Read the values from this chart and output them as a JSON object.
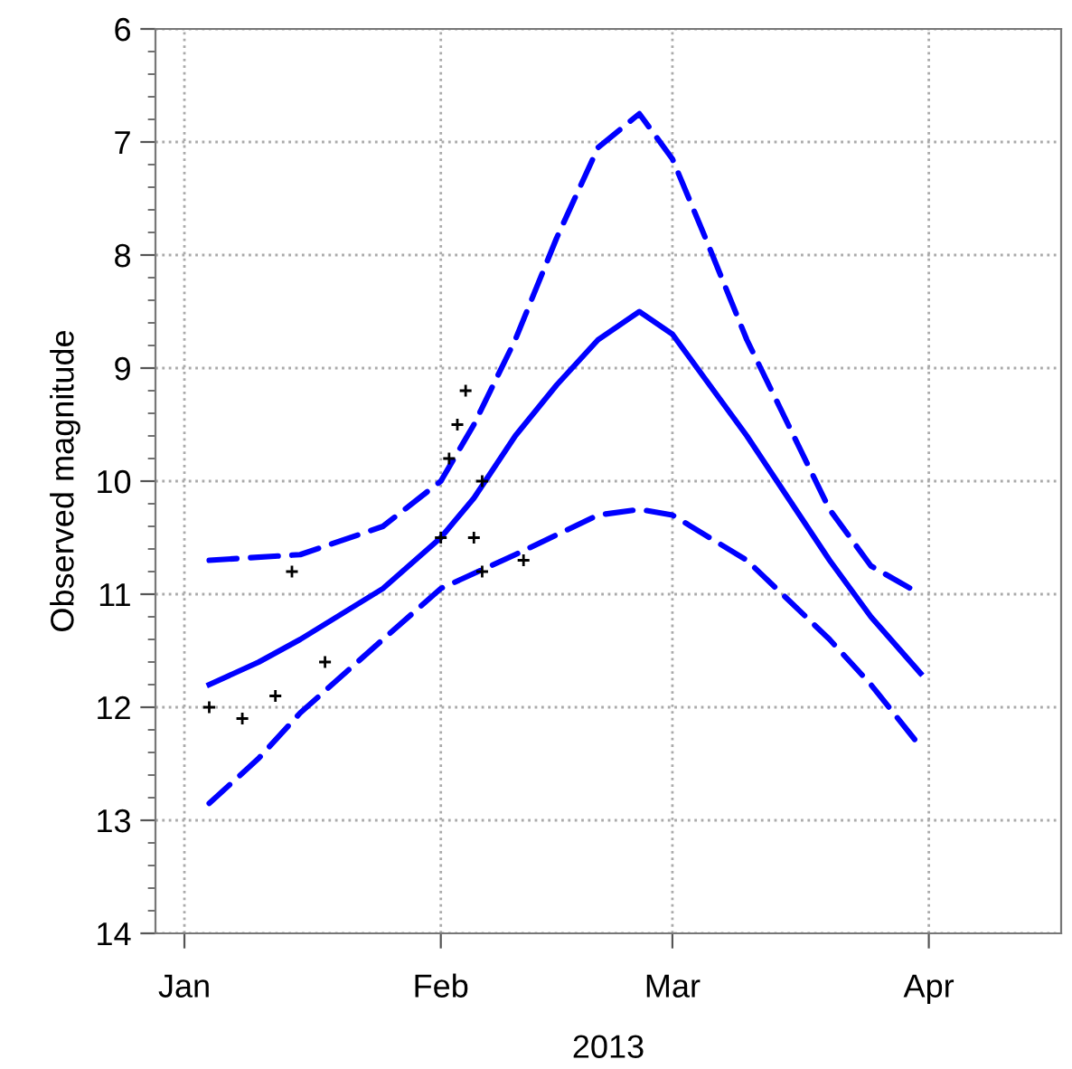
{
  "chart_data": {
    "type": "line",
    "xlabel": "2013",
    "ylabel": "Observed magnitude",
    "xlim": [
      "2012-12-28T12:00",
      "2013-04-17"
    ],
    "ylim": [
      14,
      6
    ],
    "xticks": [
      {
        "value": "2013-01-01",
        "label": "Jan"
      },
      {
        "value": "2013-02-01",
        "label": "Feb"
      },
      {
        "value": "2013-03-01",
        "label": "Mar"
      },
      {
        "value": "2013-04-01",
        "label": "Apr"
      }
    ],
    "yticks": [
      6,
      7,
      8,
      9,
      10,
      11,
      12,
      13,
      14
    ],
    "grid": true,
    "series": [
      {
        "line_style": "solid",
        "color": "#0000ff",
        "x": [
          "2013-01-04",
          "2013-01-10",
          "2013-01-15",
          "2013-01-25",
          "2013-02-01",
          "2013-02-05",
          "2013-02-10",
          "2013-02-15",
          "2013-02-20",
          "2013-02-25",
          "2013-03-01",
          "2013-03-05",
          "2013-03-10",
          "2013-03-15",
          "2013-03-20",
          "2013-03-25",
          "2013-03-31"
        ],
        "values": [
          11.8,
          11.6,
          11.4,
          10.95,
          10.5,
          10.15,
          9.6,
          9.15,
          8.75,
          8.5,
          8.7,
          9.1,
          9.6,
          10.15,
          10.7,
          11.2,
          11.7
        ]
      },
      {
        "line_style": "dashed",
        "color": "#0000ff",
        "x": [
          "2013-01-04",
          "2013-01-15",
          "2013-01-25",
          "2013-02-01",
          "2013-02-05",
          "2013-02-10",
          "2013-02-15",
          "2013-02-20",
          "2013-02-25",
          "2013-03-01",
          "2013-03-05",
          "2013-03-10",
          "2013-03-15",
          "2013-03-20",
          "2013-03-25",
          "2013-03-31"
        ],
        "values": [
          10.7,
          10.65,
          10.4,
          10.0,
          9.5,
          8.75,
          7.85,
          7.05,
          6.75,
          7.15,
          7.85,
          8.75,
          9.5,
          10.25,
          10.75,
          11.0
        ]
      },
      {
        "line_style": "dashed",
        "color": "#0000ff",
        "x": [
          "2013-01-04",
          "2013-01-10",
          "2013-01-15",
          "2013-01-25",
          "2013-02-01",
          "2013-02-10",
          "2013-02-20",
          "2013-02-25",
          "2013-03-01",
          "2013-03-10",
          "2013-03-20",
          "2013-03-25",
          "2013-03-31"
        ],
        "values": [
          12.85,
          12.45,
          12.05,
          11.4,
          10.95,
          10.65,
          10.3,
          10.25,
          10.3,
          10.7,
          11.4,
          11.8,
          12.35
        ]
      },
      {
        "type": "scatter",
        "marker": "cross",
        "color": "#000000",
        "x": [
          "2013-01-04",
          "2013-01-08",
          "2013-01-12",
          "2013-01-14",
          "2013-01-18",
          "2013-02-01",
          "2013-02-02",
          "2013-02-03",
          "2013-02-04",
          "2013-02-05",
          "2013-02-06",
          "2013-02-06",
          "2013-02-11"
        ],
        "values": [
          12.0,
          12.1,
          11.9,
          10.8,
          11.6,
          10.5,
          9.8,
          9.5,
          9.2,
          10.5,
          10.0,
          10.8,
          10.7
        ]
      }
    ]
  }
}
